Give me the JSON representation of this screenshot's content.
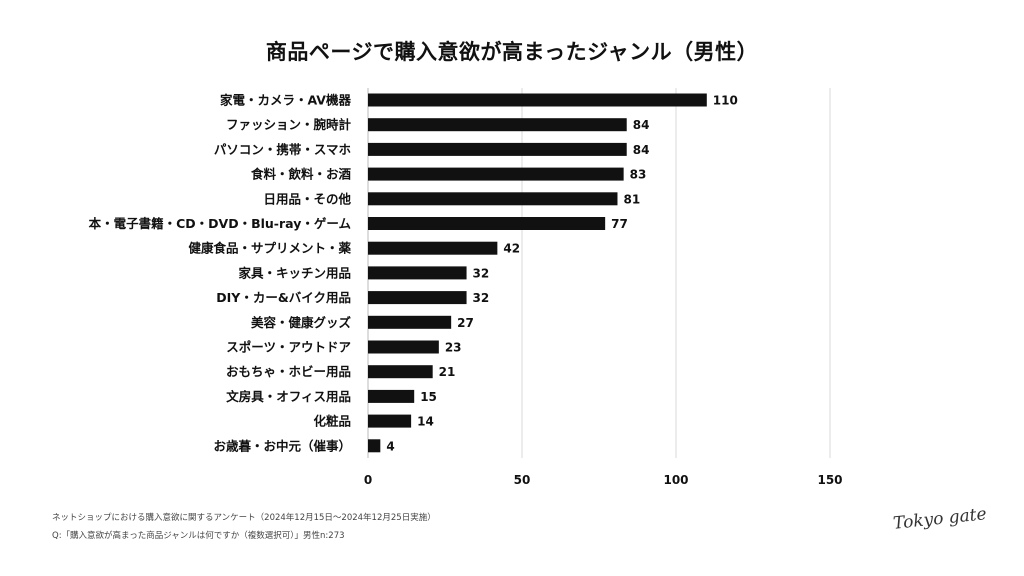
{
  "title": "商品ページで購入意欲が高まったジャンル（男性）",
  "chart_data": {
    "type": "bar",
    "orientation": "horizontal",
    "title": "商品ページで購入意欲が高まったジャンル（男性）",
    "categories": [
      "家電・カメラ・AV機器",
      "ファッション・腕時計",
      "パソコン・携帯・スマホ",
      "食料・飲料・お酒",
      "日用品・その他",
      "本・電子書籍・CD・DVD・Blu-ray・ゲーム",
      "健康食品・サプリメント・薬",
      "家具・キッチン用品",
      "DIY・カー&バイク用品",
      "美容・健康グッズ",
      "スポーツ・アウトドア",
      "おもちゃ・ホビー用品",
      "文房具・オフィス用品",
      "化粧品",
      "お歳暮・お中元（催事）"
    ],
    "values": [
      110,
      84,
      84,
      83,
      81,
      77,
      42,
      32,
      32,
      27,
      23,
      21,
      15,
      14,
      4
    ],
    "xlim": [
      0,
      150
    ],
    "xticks": [
      0,
      50,
      100,
      150
    ],
    "xlabel": "",
    "ylabel": "",
    "grid": true,
    "bar_color": "#111111",
    "grid_color": "#d9d9d9"
  },
  "footer": {
    "survey": "ネットショップにおける購入意欲に関するアンケート（2024年12月15日〜2024年12月25日実施）",
    "question": "Q:「購入意欲が高まった商品ジャンルは何ですか（複数選択可）」男性n:273"
  },
  "logo": "Tokyo gate"
}
